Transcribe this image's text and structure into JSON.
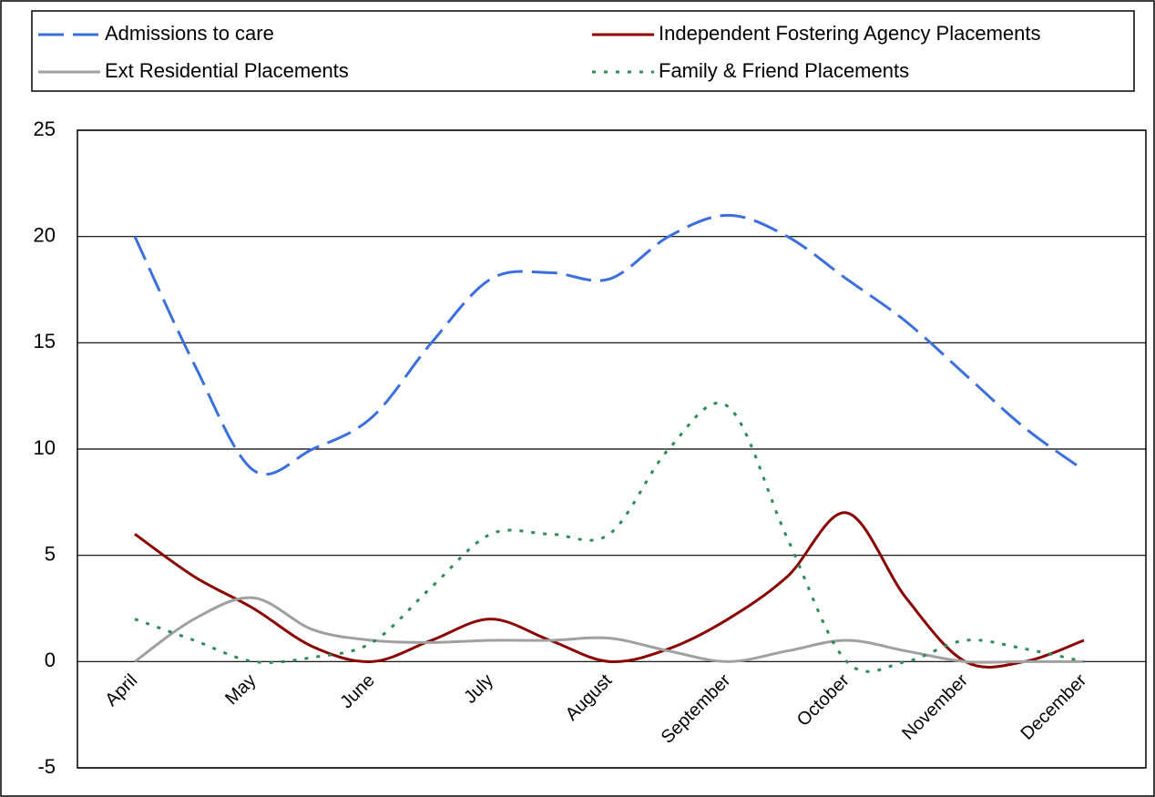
{
  "chart_data": {
    "type": "line",
    "categories": [
      "April",
      null,
      "May",
      null,
      "June",
      null,
      "July",
      null,
      "August",
      null,
      "September",
      null,
      "October",
      null,
      "November",
      null,
      "December"
    ],
    "series": [
      {
        "name": "Admissions to care",
        "color": "#3b6fe0",
        "dash": "28,10",
        "values": [
          20,
          14,
          9,
          10,
          11.5,
          15,
          18,
          18.3,
          18,
          20,
          21,
          20,
          18,
          16,
          13.5,
          11,
          9
        ]
      },
      {
        "name": "Independent Fostering Agency Placements",
        "color": "#8b0000",
        "dash": "none",
        "values": [
          6,
          4,
          2.5,
          0.7,
          0,
          1,
          2,
          1,
          0,
          0.6,
          2,
          4,
          7,
          3,
          0,
          0,
          1
        ]
      },
      {
        "name": "Ext Residential Placements",
        "color": "#a0a0a0",
        "dash": "none",
        "values": [
          0,
          2,
          3,
          1.5,
          1,
          0.9,
          1,
          1,
          1.1,
          0.5,
          0,
          0.5,
          1,
          0.5,
          0,
          0,
          0
        ]
      },
      {
        "name": "Family & Friend Placements",
        "color": "#2e8b57",
        "dash": "4,9",
        "values": [
          2,
          1,
          0,
          0.2,
          0.9,
          3.5,
          6,
          6,
          6,
          10,
          12,
          5.8,
          0,
          0,
          1,
          0.6,
          0
        ]
      }
    ],
    "ylim": [
      -5,
      25
    ],
    "yticks": [
      -5,
      0,
      5,
      10,
      15,
      20,
      25
    ],
    "grid": true,
    "legend": "top"
  }
}
